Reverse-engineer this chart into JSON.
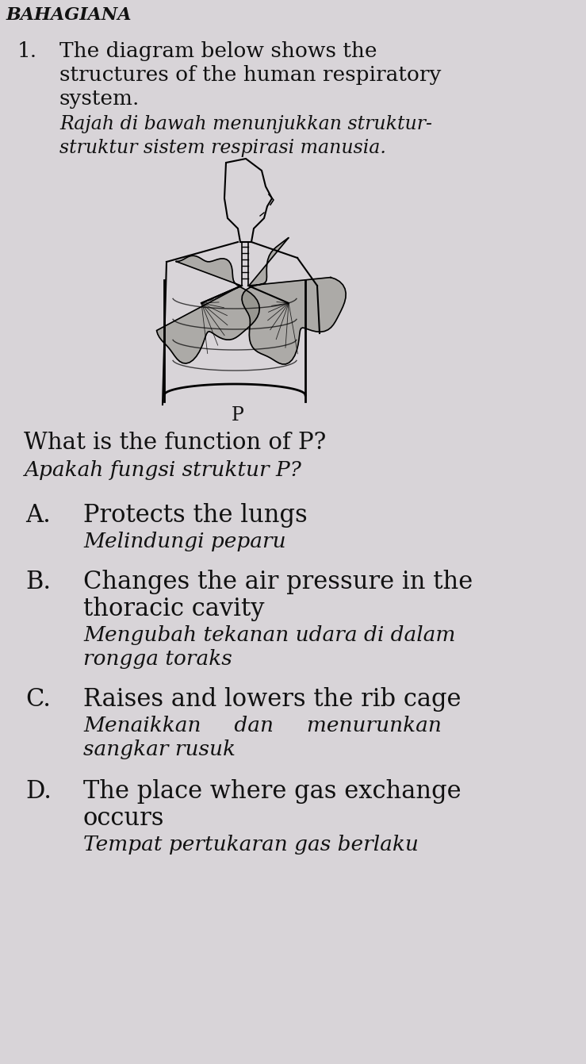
{
  "bg_color": "#d8d4d8",
  "text_color": "#1a1a1a",
  "header": "BAHAGIANA",
  "question_num": "1.",
  "q_line1_en": "The diagram below shows the",
  "q_line2_en": "structures of the human respiratory",
  "q_line3_en": "system.",
  "q_line1_ms": "Rajah di bawah menunjukkan struktur-",
  "q_line2_ms": "struktur sistem respirasi manusia.",
  "question2_en": "What is the function of P?",
  "question2_ms": "Apakah fungsi struktur P?",
  "label_P": "P",
  "opt_A_letter": "A.",
  "opt_A_en1": "Protects the lungs",
  "opt_A_ms1": "Melindungi peparu",
  "opt_B_letter": "B.",
  "opt_B_en1": "Changes the air pressure in the",
  "opt_B_en2": "thoracic cavity",
  "opt_B_ms1": "Mengubah tekanan udara di dalam",
  "opt_B_ms2": "rongga toraks",
  "opt_C_letter": "C.",
  "opt_C_en1": "Raises and lowers the rib cage",
  "opt_C_ms1": "Menaikkan     dan     menurunkan",
  "opt_C_ms2": "sangkar rusuk",
  "opt_D_letter": "D.",
  "opt_D_en1": "The place where gas exchange",
  "opt_D_en2": "occurs",
  "opt_D_ms1": "Tempat pertukaran gas berlaku"
}
